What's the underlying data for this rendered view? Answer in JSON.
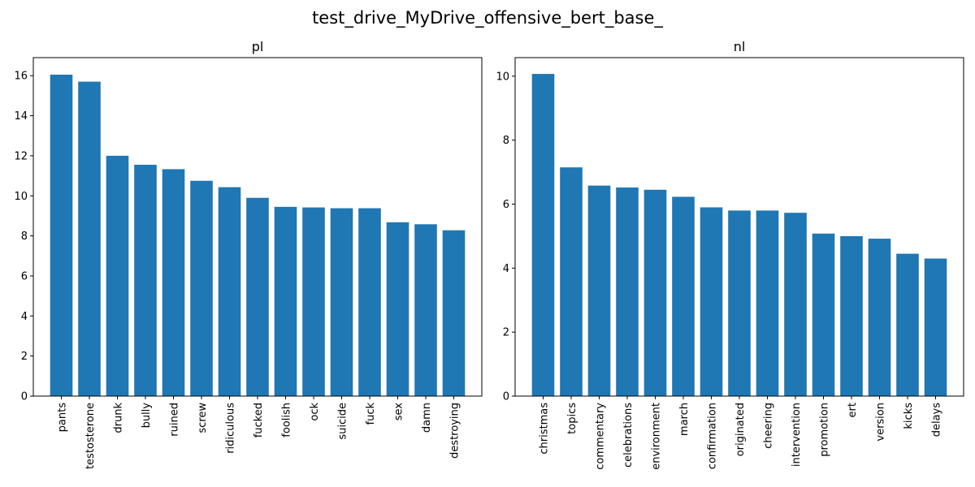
{
  "figure_title": "test_drive_MyDrive_offensive_bert_base_",
  "colors": {
    "bar": "#1f77b4",
    "axes": "#000000",
    "background": "#ffffff"
  },
  "chart_data": [
    {
      "type": "bar",
      "title": "pl",
      "xlabel": "",
      "ylabel": "",
      "ylim": [
        0,
        16.9
      ],
      "yticks": [
        0,
        2,
        4,
        6,
        8,
        10,
        12,
        14,
        16
      ],
      "grid": false,
      "categories": [
        "pants",
        "testosterone",
        "drunk",
        "bully",
        "ruined",
        "screw",
        "ridiculous",
        "fucked",
        "foolish",
        "ock",
        "suicide",
        "fuck",
        "sex",
        "damn",
        "destroying"
      ],
      "values": [
        16.05,
        15.7,
        12.0,
        11.55,
        11.33,
        10.75,
        10.43,
        9.9,
        9.45,
        9.42,
        9.38,
        9.38,
        8.68,
        8.58,
        8.28
      ]
    },
    {
      "type": "bar",
      "title": "nl",
      "xlabel": "",
      "ylabel": "",
      "ylim": [
        0,
        10.58
      ],
      "yticks": [
        0,
        2,
        4,
        6,
        8,
        10
      ],
      "grid": false,
      "categories": [
        "christmas",
        "topics",
        "commentary",
        "celebrations",
        "environment",
        "march",
        "confirmation",
        "originated",
        "cheering",
        "intervention",
        "promotion",
        "ert",
        "version",
        "kicks",
        "delays"
      ],
      "values": [
        10.07,
        7.15,
        6.58,
        6.52,
        6.45,
        6.23,
        5.9,
        5.8,
        5.8,
        5.73,
        5.08,
        5.0,
        4.92,
        4.45,
        4.3
      ]
    }
  ]
}
